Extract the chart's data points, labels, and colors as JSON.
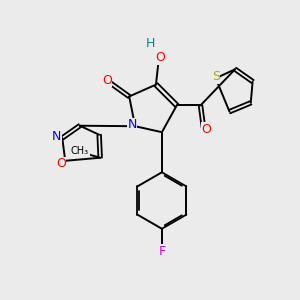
{
  "bg_color": "#ebebeb",
  "atom_colors": {
    "O": "#ff0000",
    "N": "#0000ff",
    "S": "#aaaa00",
    "F": "#dd00dd",
    "H": "#008888",
    "C": "#000000"
  },
  "figsize": [
    3.0,
    3.0
  ],
  "dpi": 100
}
